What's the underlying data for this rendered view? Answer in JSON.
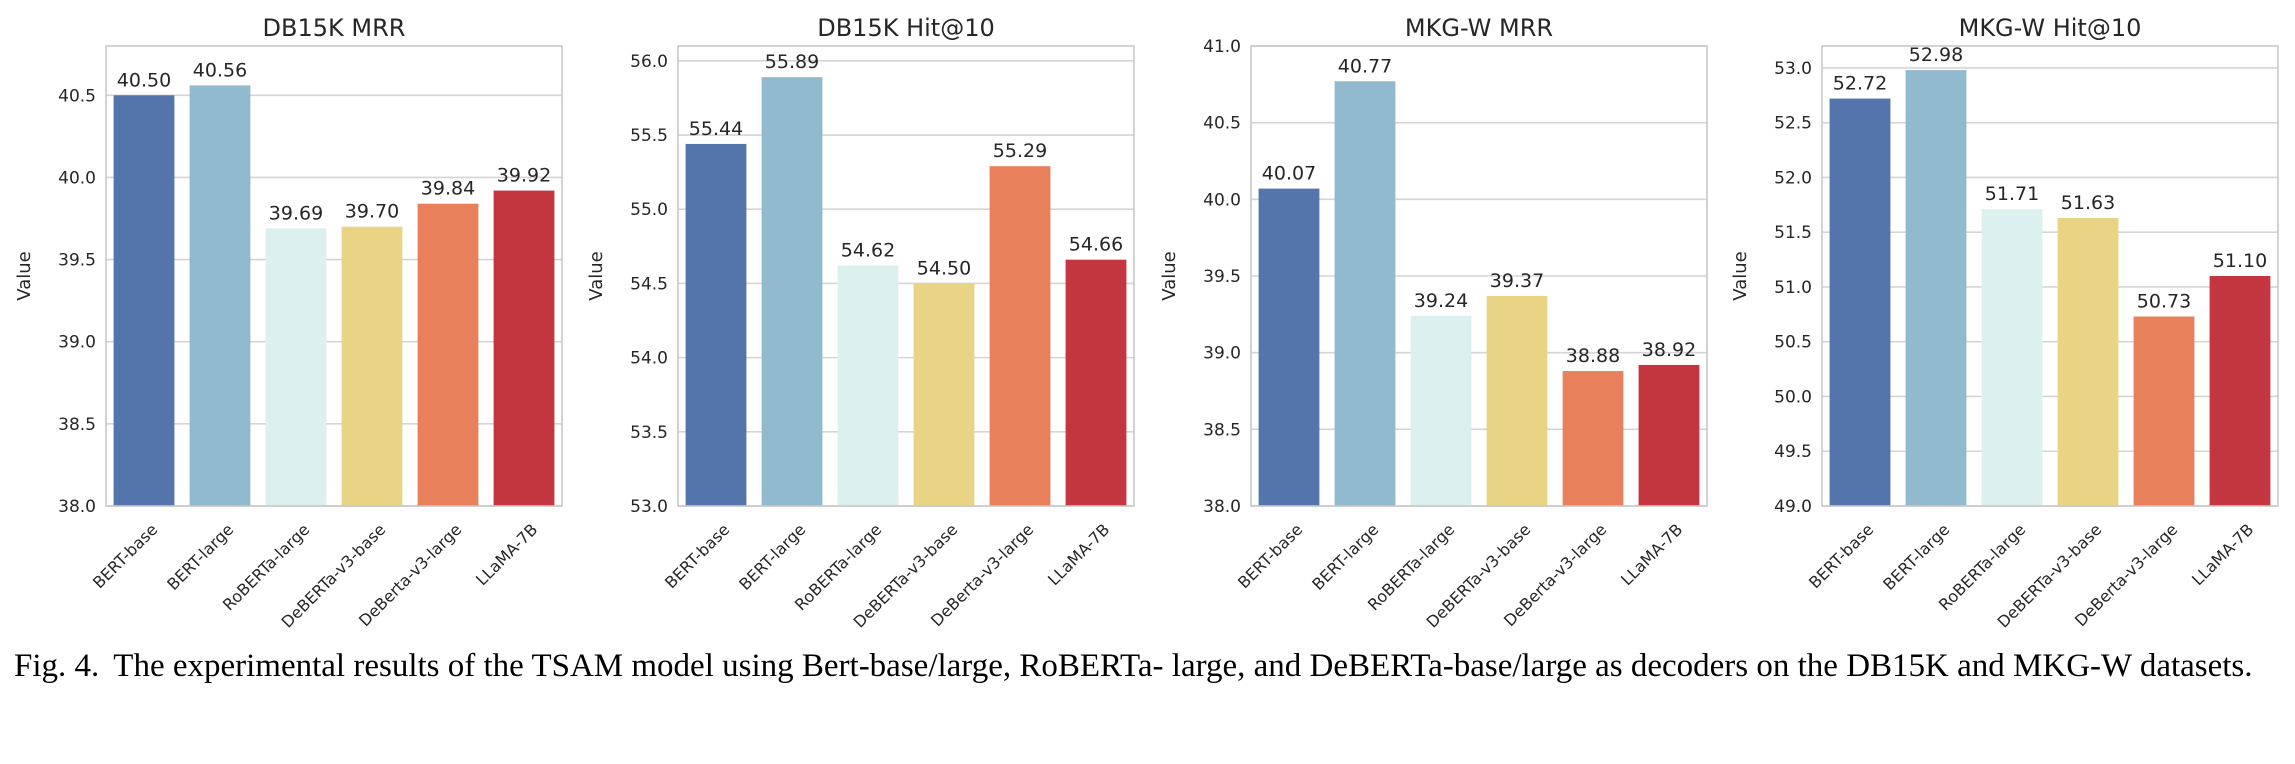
{
  "caption": {
    "label": "Fig. 4.",
    "text": "The experimental results of the TSAM model using Bert-base/large, RoBERTa- large, and DeBERTa-base/large as decoders on the DB15K and MKG-W datasets."
  },
  "chart_data": [
    {
      "type": "bar",
      "title": "DB15K MRR",
      "ylabel": "Value",
      "xlabel": "",
      "ylim": [
        38.0,
        40.8
      ],
      "yticks": [
        "38.0",
        "38.5",
        "39.0",
        "39.5",
        "40.0",
        "40.5"
      ],
      "categories": [
        "BERT-base",
        "BERT-large",
        "RoBERTa-large",
        "DeBERTa-v3-base",
        "DeBerta-v3-large",
        "LLaMA-7B"
      ],
      "values": [
        40.5,
        40.56,
        39.69,
        39.7,
        39.84,
        39.92
      ],
      "labels": [
        "40.50",
        "40.56",
        "39.69",
        "39.70",
        "39.84",
        "39.92"
      ],
      "colors": [
        "#5475ab",
        "#92bacf",
        "#dcf1ef",
        "#e9d486",
        "#e8805c",
        "#c4363f"
      ],
      "grid": true
    },
    {
      "type": "bar",
      "title": "DB15K Hit@10",
      "ylabel": "Value",
      "xlabel": "",
      "ylim": [
        53.0,
        56.1
      ],
      "yticks": [
        "53.0",
        "53.5",
        "54.0",
        "54.5",
        "55.0",
        "55.5",
        "56.0"
      ],
      "categories": [
        "BERT-base",
        "BERT-large",
        "RoBERTa-large",
        "DeBERTa-v3-base",
        "DeBerta-v3-large",
        "LLaMA-7B"
      ],
      "values": [
        55.44,
        55.89,
        54.62,
        54.5,
        55.29,
        54.66
      ],
      "labels": [
        "55.44",
        "55.89",
        "54.62",
        "54.50",
        "55.29",
        "54.66"
      ],
      "colors": [
        "#5475ab",
        "#92bacf",
        "#dcf1ef",
        "#e9d486",
        "#e8805c",
        "#c4363f"
      ],
      "grid": true
    },
    {
      "type": "bar",
      "title": "MKG-W MRR",
      "ylabel": "Value",
      "xlabel": "",
      "ylim": [
        38.0,
        41.0
      ],
      "yticks": [
        "38.0",
        "38.5",
        "39.0",
        "39.5",
        "40.0",
        "40.5",
        "41.0"
      ],
      "categories": [
        "BERT-base",
        "BERT-large",
        "RoBERTa-large",
        "DeBERTa-v3-base",
        "DeBerta-v3-large",
        "LLaMA-7B"
      ],
      "values": [
        40.07,
        40.77,
        39.24,
        39.37,
        38.88,
        38.92
      ],
      "labels": [
        "40.07",
        "40.77",
        "39.24",
        "39.37",
        "38.88",
        "38.92"
      ],
      "colors": [
        "#5475ab",
        "#92bacf",
        "#dcf1ef",
        "#e9d486",
        "#e8805c",
        "#c4363f"
      ],
      "grid": true
    },
    {
      "type": "bar",
      "title": "MKG-W Hit@10",
      "ylabel": "Value",
      "xlabel": "",
      "ylim": [
        49.0,
        53.2
      ],
      "yticks": [
        "49.0",
        "49.5",
        "50.0",
        "50.5",
        "51.0",
        "51.5",
        "52.0",
        "52.5",
        "53.0"
      ],
      "categories": [
        "BERT-base",
        "BERT-large",
        "RoBERTa-large",
        "DeBERTa-v3-base",
        "DeBerta-v3-large",
        "LLaMA-7B"
      ],
      "values": [
        52.72,
        52.98,
        51.71,
        51.63,
        50.73,
        51.1
      ],
      "labels": [
        "52.72",
        "52.98",
        "51.71",
        "51.63",
        "50.73",
        "51.10"
      ],
      "colors": [
        "#5475ab",
        "#92bacf",
        "#dcf1ef",
        "#e9d486",
        "#e8805c",
        "#c4363f"
      ],
      "grid": true
    }
  ]
}
